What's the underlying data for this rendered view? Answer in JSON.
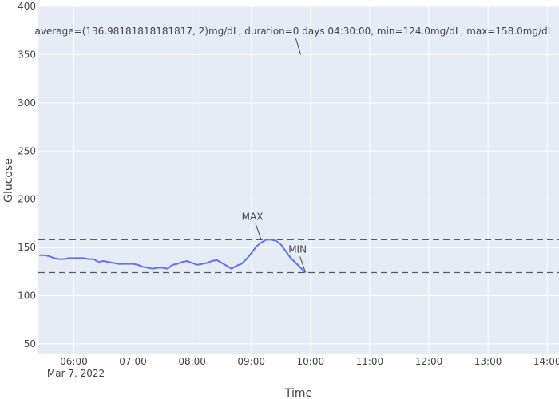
{
  "chart_data": {
    "type": "line",
    "title": "",
    "xlabel": "Time",
    "ylabel": "Glucose",
    "date_label": "Mar 7, 2022",
    "xlim": [
      "05:24",
      "14:12"
    ],
    "ylim": [
      40,
      400
    ],
    "yticks": [
      50,
      100,
      150,
      200,
      250,
      300,
      350,
      400
    ],
    "xticks": [
      "06:00",
      "07:00",
      "08:00",
      "09:00",
      "10:00",
      "11:00",
      "12:00",
      "13:00",
      "14:00"
    ],
    "grid": true,
    "colors": {
      "plot_bg": "#e5ecf6",
      "grid": "#ffffff",
      "line": "#636efa",
      "ref_line": "#555a66",
      "text": "#444444"
    },
    "series": [
      {
        "x": [
          "05:25",
          "05:30",
          "05:35",
          "05:40",
          "05:45",
          "05:50",
          "05:55",
          "06:00",
          "06:05",
          "06:10",
          "06:15",
          "06:20",
          "06:25",
          "06:30",
          "06:35",
          "06:40",
          "06:45",
          "06:50",
          "06:55",
          "07:00",
          "07:05",
          "07:10",
          "07:15",
          "07:20",
          "07:25",
          "07:30",
          "07:35",
          "07:40",
          "07:45",
          "07:50",
          "07:55",
          "08:00",
          "08:05",
          "08:10",
          "08:15",
          "08:20",
          "08:25",
          "08:30",
          "08:35",
          "08:40",
          "08:45",
          "08:50",
          "08:55",
          "09:00",
          "09:05",
          "09:10",
          "09:15",
          "09:20",
          "09:25",
          "09:30",
          "09:35",
          "09:40",
          "09:45",
          "09:50",
          "09:55"
        ],
        "values": [
          142,
          142,
          141,
          139,
          138,
          138,
          139,
          139,
          139,
          139,
          138,
          138,
          135,
          136,
          135,
          134,
          133,
          133,
          133,
          133,
          132,
          130,
          129,
          128,
          129,
          129,
          128,
          132,
          133,
          135,
          136,
          134,
          132,
          133,
          134,
          136,
          137,
          134,
          131,
          128,
          131,
          133,
          138,
          144,
          151,
          155,
          158,
          158,
          157,
          153,
          146,
          139,
          134,
          129,
          124
        ]
      }
    ],
    "reference_lines": [
      {
        "y": 158
      },
      {
        "y": 124
      }
    ],
    "annotations": [
      {
        "text": "average=(136.98181818181817, 2)mg/dL, duration=0 days 04:30:00, min=124.0mg/dL, max=158.0mg/dL",
        "x": "09:50",
        "y": 350
      },
      {
        "text": "MAX",
        "x": "09:10",
        "y": 158
      },
      {
        "text": "MIN",
        "x": "09:55",
        "y": 124
      }
    ]
  }
}
